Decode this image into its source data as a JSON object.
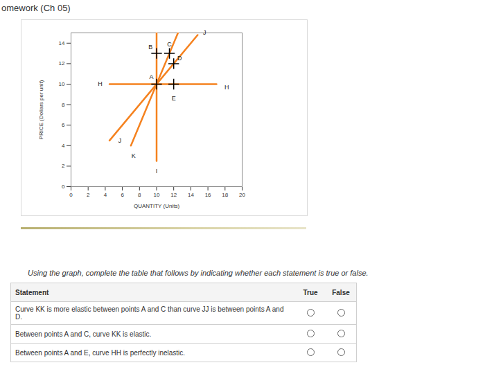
{
  "header": "omework (Ch 05)",
  "chart_data": {
    "type": "line",
    "xlabel": "QUANTITY (Units)",
    "ylabel": "PRICE (Dollars per unit)",
    "xlim": [
      0,
      20
    ],
    "xticks": [
      0,
      2,
      4,
      6,
      8,
      10,
      12,
      14,
      16,
      18,
      20
    ],
    "ylim": [
      0,
      15
    ],
    "yticks": [
      0,
      2,
      4,
      6,
      8,
      10,
      12,
      14
    ],
    "series": [
      {
        "color": "#f5821f",
        "x": [
          4.5,
          17
        ],
        "values": [
          10,
          10
        ]
      },
      {
        "color": "#f5821f",
        "x": [
          10,
          10
        ],
        "values": [
          2.5,
          15
        ]
      },
      {
        "color": "#f5821f",
        "x": [
          4.5,
          14.8
        ],
        "values": [
          4.5,
          14.8
        ]
      },
      {
        "color": "#f5821f",
        "x": [
          7,
          12.5
        ],
        "values": [
          4,
          15
        ]
      }
    ],
    "points": {
      "x": [
        10,
        10,
        11.5,
        12,
        12
      ],
      "y": [
        10,
        13,
        13,
        12,
        10
      ],
      "marker": "plus",
      "color": "#000000"
    },
    "annotations": [
      {
        "text": "H",
        "x": 3.4,
        "y": 10
      },
      {
        "text": "H",
        "x": 18.2,
        "y": 9.7
      },
      {
        "text": "J",
        "x": 15.6,
        "y": 15
      },
      {
        "text": "J",
        "x": 5.7,
        "y": 4.5
      },
      {
        "text": "K",
        "x": 7.3,
        "y": 3.0
      },
      {
        "text": "I",
        "x": 10,
        "y": 1.5
      },
      {
        "text": "A",
        "x": 9.4,
        "y": 10.7
      },
      {
        "text": "B",
        "x": 9.3,
        "y": 13.6
      },
      {
        "text": "C",
        "x": 11.5,
        "y": 13.9
      },
      {
        "text": "D",
        "x": 12.7,
        "y": 12.5
      },
      {
        "text": "E",
        "x": 12,
        "y": 8.6
      }
    ]
  },
  "instruction": "Using the graph, complete the table that follows by indicating whether each statement is true or false.",
  "table": {
    "header": [
      "Statement",
      "True",
      "False"
    ],
    "rows": [
      "Curve KK is more elastic between points A and C than curve JJ is between points A and D.",
      "Between points A and C, curve KK is elastic.",
      "Between points A and E, curve HH is perfectly inelastic."
    ]
  }
}
